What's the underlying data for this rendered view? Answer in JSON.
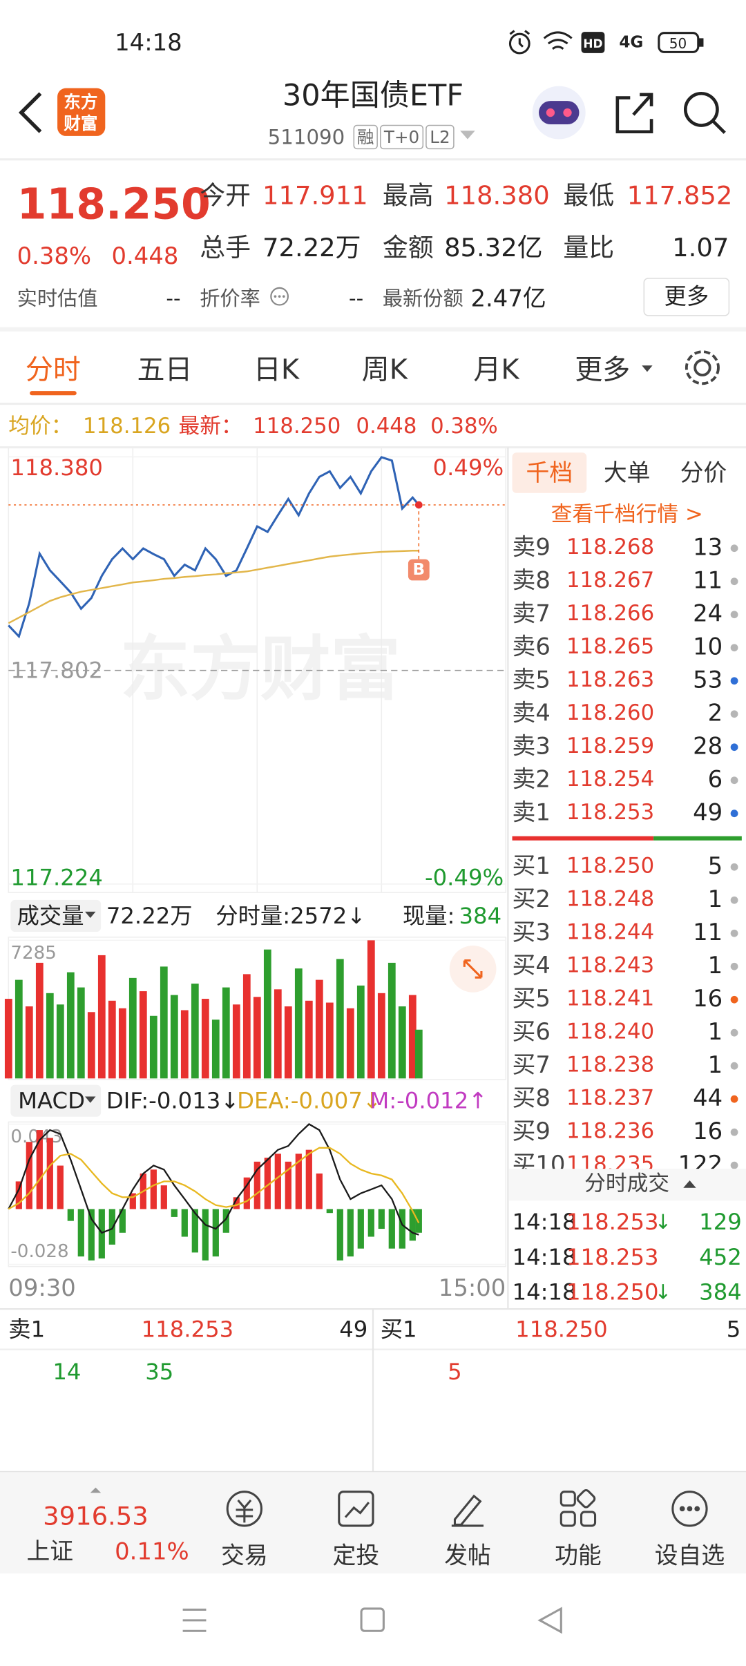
{
  "status_bar": {
    "time": "14:18",
    "hd": "HD",
    "network": "4G",
    "battery": "50"
  },
  "header": {
    "logo": [
      "东方",
      "财富"
    ],
    "title": "30年国债ETF",
    "code": "511090",
    "tags": [
      "融",
      "T+0",
      "L2"
    ]
  },
  "quote": {
    "price": "118.250",
    "change_pct": "0.38%",
    "change": "0.448",
    "fields": [
      [
        {
          "label": "今开",
          "value": "117.911"
        },
        {
          "label": "最高",
          "value": "118.380"
        },
        {
          "label": "最低",
          "value": "117.852"
        }
      ],
      [
        {
          "label": "总手",
          "value": "72.22万"
        },
        {
          "label": "金额",
          "value": "85.32亿"
        },
        {
          "label": "量比",
          "value": "1.07"
        }
      ],
      [
        {
          "label": "实时估值",
          "value": "--"
        },
        {
          "label": "折价率",
          "value": "--"
        },
        {
          "label": "最新份额",
          "value": "2.47亿"
        }
      ]
    ],
    "more": "更多"
  },
  "tabs": [
    "分时",
    "五日",
    "日K",
    "周K",
    "月K",
    "更多"
  ],
  "summary": {
    "avg_label": "均价：",
    "avg": "118.126",
    "latest_label": "最新：",
    "latest": "118.250",
    "change": "0.448",
    "change_pct": "0.38%"
  },
  "chart_data": [
    {
      "type": "line",
      "x": [
        0,
        5,
        10,
        15,
        20,
        25,
        30,
        35,
        40,
        45,
        50,
        55,
        60,
        65,
        70,
        75,
        80,
        85,
        90,
        95,
        100,
        105,
        110,
        115,
        120,
        125,
        130,
        135,
        140,
        145,
        150,
        155,
        160,
        165,
        170,
        175,
        180,
        185,
        190,
        195,
        198
      ],
      "xlim": [
        0,
        240
      ],
      "xticks": [
        {
          "value": 0,
          "label": "09:30"
        },
        {
          "value": 240,
          "label": "15:00"
        }
      ],
      "ylim": [
        117.224,
        118.38
      ],
      "yticks": [
        117.224,
        117.802,
        {
          "value": 118.38,
          "label": "118.380"
        }
      ],
      "y2lim": [
        -0.49,
        0.49
      ],
      "y2ticks": [
        {
          "value": -0.49,
          "label": "-0.49%"
        },
        {
          "value": 0.49,
          "label": "0.49%"
        }
      ],
      "series": [
        {
          "color": "#2f63b5",
          "values": [
            117.924,
            117.894,
            117.984,
            118.118,
            118.073,
            118.043,
            118.013,
            117.969,
            117.998,
            118.058,
            118.103,
            118.132,
            118.103,
            118.132,
            118.117,
            118.103,
            118.058,
            118.088,
            118.073,
            118.132,
            118.103,
            118.058,
            118.073,
            118.132,
            118.192,
            118.177,
            118.222,
            118.266,
            118.222,
            118.281,
            118.326,
            118.341,
            118.296,
            118.326,
            118.281,
            118.341,
            118.379,
            118.37,
            118.24,
            118.27,
            118.25
          ]
        },
        {
          "color": "#e2b64a",
          "values": [
            117.93,
            117.945,
            117.96,
            117.975,
            117.99,
            118.0,
            118.008,
            118.015,
            118.02,
            118.025,
            118.03,
            118.035,
            118.04,
            118.043,
            118.046,
            118.05,
            118.052,
            118.055,
            118.057,
            118.06,
            118.062,
            118.065,
            118.067,
            118.07,
            118.075,
            118.08,
            118.085,
            118.09,
            118.095,
            118.1,
            118.105,
            118.11,
            118.113,
            118.116,
            118.119,
            118.121,
            118.123,
            118.124,
            118.125,
            118.126,
            118.126
          ]
        }
      ],
      "grid": true,
      "marker": "B",
      "watermark": "东方财富"
    },
    {
      "type": "bar",
      "x": [
        0,
        5,
        10,
        15,
        20,
        25,
        30,
        35,
        40,
        45,
        50,
        55,
        60,
        65,
        70,
        75,
        80,
        85,
        90,
        95,
        100,
        105,
        110,
        115,
        120,
        125,
        130,
        135,
        140,
        145,
        150,
        155,
        160,
        165,
        170,
        175,
        180,
        185,
        190,
        195,
        198
      ],
      "xlim": [
        0,
        240
      ],
      "values": [
        4200,
        5200,
        3800,
        6100,
        4500,
        3900,
        5600,
        4800,
        3500,
        6500,
        4100,
        3700,
        5300,
        4600,
        3300,
        5900,
        4400,
        3600,
        5000,
        4200,
        3100,
        4800,
        3900,
        5500,
        4300,
        6800,
        4700,
        3800,
        5800,
        4100,
        5200,
        4000,
        6300,
        3700,
        4900,
        7285,
        4500,
        6100,
        3800,
        4400,
        2572
      ],
      "ylim": [
        0,
        7285
      ],
      "yticks": [
        7285
      ],
      "up_color": "#e8312f",
      "down_color": "#2e9e2e",
      "header": {
        "label": "成交量",
        "total": "72.22万",
        "minute_volume": "分时量:2572↓",
        "current_label": "现量:",
        "current": "384"
      }
    },
    {
      "type": "macd",
      "x": [
        0,
        5,
        10,
        15,
        20,
        25,
        30,
        35,
        40,
        45,
        50,
        55,
        60,
        65,
        70,
        75,
        80,
        85,
        90,
        95,
        100,
        105,
        110,
        115,
        120,
        125,
        130,
        135,
        140,
        145,
        150,
        155,
        160,
        165,
        170,
        175,
        180,
        185,
        190,
        195,
        198
      ],
      "xlim": [
        0,
        240
      ],
      "ylim": [
        -0.028,
        0.043
      ],
      "yticks": [
        -0.028,
        0.043
      ],
      "series": [
        {
          "color": "#1a1a1a",
          "values": [
            0,
            0.01,
            0.025,
            0.035,
            0.04,
            0.038,
            0.025,
            0.01,
            -0.005,
            -0.012,
            -0.01,
            0,
            0.01,
            0.018,
            0.022,
            0.02,
            0.012,
            0.005,
            -0.002,
            -0.008,
            -0.01,
            -0.005,
            0.005,
            0.012,
            0.02,
            0.025,
            0.03,
            0.032,
            0.038,
            0.043,
            0.04,
            0.03,
            0.015,
            0.005,
            0.008,
            0.01,
            0.012,
            0.005,
            -0.008,
            -0.012,
            -0.013
          ]
        },
        {
          "color": "#e8b820",
          "values": [
            0,
            0.003,
            0.008,
            0.015,
            0.022,
            0.027,
            0.028,
            0.025,
            0.019,
            0.013,
            0.008,
            0.006,
            0.006,
            0.009,
            0.012,
            0.014,
            0.014,
            0.012,
            0.009,
            0.005,
            0.002,
            0.001,
            0.002,
            0.004,
            0.008,
            0.012,
            0.016,
            0.02,
            0.024,
            0.028,
            0.031,
            0.031,
            0.028,
            0.023,
            0.02,
            0.018,
            0.017,
            0.015,
            0.008,
            -0.001,
            -0.007
          ]
        }
      ],
      "histogram": {
        "up_color": "#e8312f",
        "down_color": "#2e9e2e",
        "values": [
          0,
          0.014,
          0.034,
          0.04,
          0.036,
          0.022,
          -0.006,
          -0.024,
          -0.026,
          -0.025,
          -0.018,
          -0.012,
          0.008,
          0.018,
          0.02,
          0.012,
          -0.004,
          -0.014,
          -0.022,
          -0.026,
          -0.024,
          -0.012,
          0.006,
          0.016,
          0.024,
          0.026,
          0.028,
          0.024,
          0.028,
          0.03,
          0.018,
          -0.002,
          -0.026,
          -0.024,
          -0.02,
          -0.014,
          -0.01,
          -0.02,
          -0.02,
          -0.016,
          -0.012
        ]
      },
      "header": {
        "label": "MACD",
        "dif": "DIF:-0.013↓",
        "dea": "DEA:-0.007↓",
        "m": "M:-0.012↑"
      }
    }
  ],
  "order_book": {
    "tabs": [
      "千档",
      "大单",
      "分价"
    ],
    "link": "查看千档行情 >",
    "asks": [
      {
        "label": "卖9",
        "price": "118.268",
        "volume": "13",
        "dot": "#b5b5b5"
      },
      {
        "label": "卖8",
        "price": "118.267",
        "volume": "11",
        "dot": "#b5b5b5"
      },
      {
        "label": "卖7",
        "price": "118.266",
        "volume": "24",
        "dot": "#b5b5b5"
      },
      {
        "label": "卖6",
        "price": "118.265",
        "volume": "10",
        "dot": "#b5b5b5"
      },
      {
        "label": "卖5",
        "price": "118.263",
        "volume": "53",
        "dot": "#2f6fd6"
      },
      {
        "label": "卖4",
        "price": "118.260",
        "volume": "2",
        "dot": "#b5b5b5"
      },
      {
        "label": "卖3",
        "price": "118.259",
        "volume": "28",
        "dot": "#2f6fd6"
      },
      {
        "label": "卖2",
        "price": "118.254",
        "volume": "6",
        "dot": "#b5b5b5"
      },
      {
        "label": "卖1",
        "price": "118.253",
        "volume": "49",
        "dot": "#2f6fd6"
      }
    ],
    "bids": [
      {
        "label": "买1",
        "price": "118.250",
        "volume": "5",
        "dot": "#b5b5b5"
      },
      {
        "label": "买2",
        "price": "118.248",
        "volume": "1",
        "dot": "#b5b5b5"
      },
      {
        "label": "买3",
        "price": "118.244",
        "volume": "11",
        "dot": "#b5b5b5"
      },
      {
        "label": "买4",
        "price": "118.243",
        "volume": "1",
        "dot": "#b5b5b5"
      },
      {
        "label": "买5",
        "price": "118.241",
        "volume": "16",
        "dot": "#f0641e"
      },
      {
        "label": "买6",
        "price": "118.240",
        "volume": "1",
        "dot": "#b5b5b5"
      },
      {
        "label": "买7",
        "price": "118.238",
        "volume": "1",
        "dot": "#b5b5b5"
      },
      {
        "label": "买8",
        "price": "118.237",
        "volume": "44",
        "dot": "#f0641e"
      },
      {
        "label": "买9",
        "price": "118.236",
        "volume": "16",
        "dot": "#b5b5b5"
      },
      {
        "label": "买10",
        "price": "118.235",
        "volume": "122",
        "dot": "#b5b5b5"
      }
    ]
  },
  "trades": {
    "title": "分时成交",
    "rows": [
      {
        "time": "14:18",
        "price": "118.253",
        "arrow": "↓",
        "volume": "129"
      },
      {
        "time": "14:18",
        "price": "118.253",
        "volume": "452"
      },
      {
        "time": "14:18",
        "price": "118.250",
        "arrow": "↓",
        "volume": "384"
      }
    ]
  },
  "level1": {
    "ask": {
      "label": "卖1",
      "price": "118.253",
      "volume": "49",
      "details": [
        "14",
        "35"
      ]
    },
    "bid": {
      "label": "买1",
      "price": "118.250",
      "volume": "5",
      "details": [
        "5"
      ]
    }
  },
  "footer": {
    "index": {
      "value": "3916.53",
      "name": "上证",
      "change": "0.11%"
    },
    "items": [
      "交易",
      "定投",
      "发帖",
      "功能",
      "设自选"
    ]
  }
}
